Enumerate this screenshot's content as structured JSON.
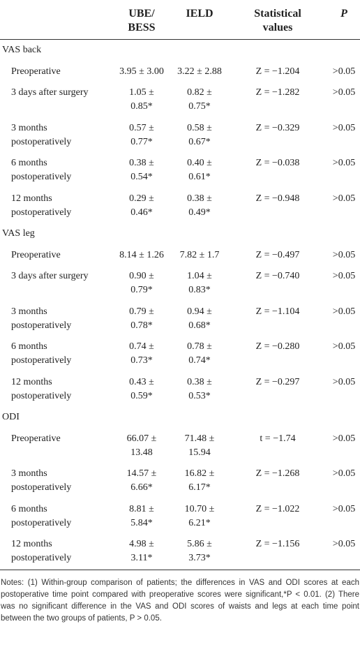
{
  "table": {
    "header": [
      "UBE/\nBESS",
      "IELD",
      "Statistical\nvalues",
      "P"
    ],
    "sections": [
      {
        "title": "VAS back",
        "rows": [
          [
            "Preoperative",
            "3.95 ± 3.00",
            "3.22 ± 2.88",
            "Z = −1.204",
            ">0.05"
          ],
          [
            "3 days after surgery",
            "1.05 ±\n0.85*",
            "0.82 ±\n0.75*",
            "Z = −1.282",
            ">0.05"
          ],
          [
            "3 months\npostoperatively",
            "0.57 ±\n0.77*",
            "0.58 ±\n0.67*",
            "Z = −0.329",
            ">0.05"
          ],
          [
            "6 months\npostoperatively",
            "0.38 ±\n0.54*",
            "0.40 ±\n0.61*",
            "Z = −0.038",
            ">0.05"
          ],
          [
            "12 months\npostoperatively",
            "0.29 ±\n0.46*",
            "0.38 ±\n0.49*",
            "Z = −0.948",
            ">0.05"
          ]
        ]
      },
      {
        "title": "VAS leg",
        "rows": [
          [
            "Preoperative",
            "8.14 ± 1.26",
            "7.82 ± 1.7",
            "Z = −0.497",
            ">0.05"
          ],
          [
            "3 days after surgery",
            "0.90 ±\n0.79*",
            "1.04 ±\n0.83*",
            "Z = −0.740",
            ">0.05"
          ],
          [
            "3 months\npostoperatively",
            "0.79 ±\n0.78*",
            "0.94 ±\n0.68*",
            "Z = −1.104",
            ">0.05"
          ],
          [
            "6 months\npostoperatively",
            "0.74 ±\n0.73*",
            "0.78 ±\n0.74*",
            "Z = −0.280",
            ">0.05"
          ],
          [
            "12 months\npostoperatively",
            "0.43 ±\n0.59*",
            "0.38 ±\n0.53*",
            "Z = −0.297",
            ">0.05"
          ]
        ]
      },
      {
        "title": "ODI",
        "rows": [
          [
            "Preoperative",
            "66.07 ±\n13.48",
            "71.48 ±\n15.94",
            "t = −1.74",
            ">0.05"
          ],
          [
            "3 months\npostoperatively",
            "14.57 ±\n6.66*",
            "16.82 ±\n6.17*",
            "Z = −1.268",
            ">0.05"
          ],
          [
            "6 months\npostoperatively",
            "8.81 ±\n5.84*",
            "10.70 ±\n6.21*",
            "Z = −1.022",
            ">0.05"
          ],
          [
            "12 months\npostoperatively",
            "4.98 ±\n3.11*",
            "5.86 ±\n3.73*",
            "Z = −1.156",
            ">0.05"
          ]
        ]
      }
    ],
    "notes": "Notes: (1) Within-group comparison of patients; the differences in VAS and ODI scores at each postoperative time point compared with preoperative scores were significant,*P < 0.01. (2) There was no significant difference in the VAS and ODI scores of waists and legs at each time point between the two groups of patients, P > 0.05."
  }
}
